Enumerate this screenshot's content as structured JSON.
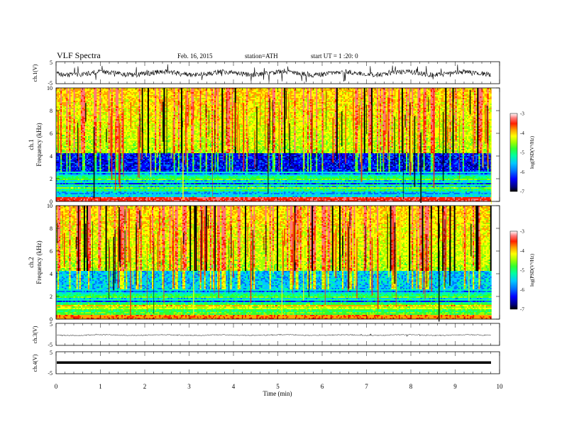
{
  "header": {
    "title": "VLF  Spectra",
    "date": "Feb. 16, 2015",
    "station": "station=ATH",
    "start": "start  UT  =   1 :20: 0"
  },
  "chart_data": [
    {
      "type": "line",
      "ylabel": "ch.1(V)",
      "ylim": [
        -5,
        5
      ],
      "yticks": [
        "5",
        "-5"
      ],
      "xlim": [
        0,
        10
      ]
    },
    {
      "type": "heatmap",
      "ylabel_channel": "ch.1",
      "ylabel": "Frequency  (kHz)",
      "ylim": [
        0,
        10
      ],
      "yticks": [
        "0",
        "2",
        "4",
        "6",
        "8",
        "10"
      ],
      "colorbar": {
        "label": "log(PSD(V²/Hz)",
        "range": [
          -7,
          -3
        ],
        "ticks": [
          "-3",
          "-4",
          "-5",
          "-6",
          "-7"
        ]
      }
    },
    {
      "type": "heatmap",
      "ylabel_channel": "ch.2",
      "ylabel": "Frequency  (kHz)",
      "ylim": [
        0,
        10
      ],
      "yticks": [
        "0",
        "2",
        "4",
        "6",
        "8",
        "10"
      ],
      "colorbar": {
        "label": "log(PSD(V²/Hz)",
        "range": [
          -7,
          -3
        ],
        "ticks": [
          "-3",
          "-4",
          "-5",
          "-6",
          "-7"
        ]
      }
    },
    {
      "type": "line",
      "ylabel": "ch.3(V)",
      "ylim": [
        -5,
        5
      ],
      "yticks": [
        "5",
        "-5"
      ]
    },
    {
      "type": "line",
      "ylabel": "ch.4(V)",
      "ylim": [
        -5,
        5
      ],
      "yticks": [
        "5",
        "-5"
      ],
      "xlabel": "Time  (min)",
      "xticks": [
        "0",
        "1",
        "2",
        "3",
        "4",
        "5",
        "6",
        "7",
        "8",
        "9",
        "10"
      ],
      "xlim": [
        0,
        10
      ],
      "data_end": 9.82
    }
  ],
  "colors": {
    "colormap": [
      "#000000",
      "#000080",
      "#0000ff",
      "#0070ff",
      "#00c8ff",
      "#00ffa0",
      "#30ff30",
      "#a0ff00",
      "#ffff00",
      "#ffa000",
      "#ff2000",
      "#ff7878",
      "#ffffff"
    ]
  }
}
